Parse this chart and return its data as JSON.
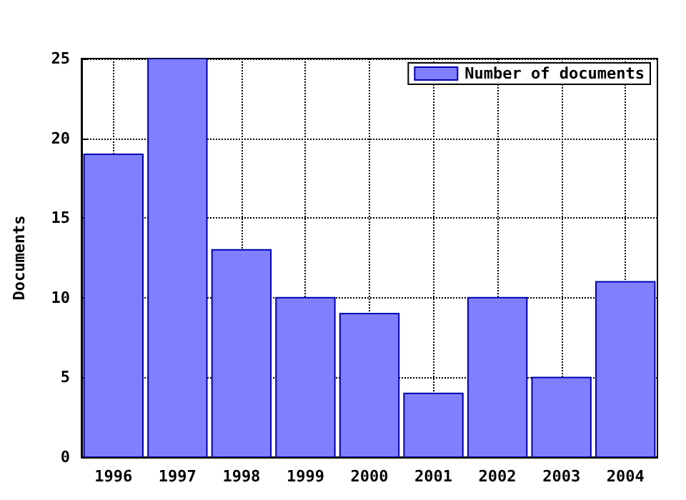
{
  "chart_data": {
    "type": "bar",
    "ylabel": "Documents",
    "x": [
      1996,
      1997,
      1998,
      1999,
      2000,
      2001,
      2002,
      2003,
      2004
    ],
    "series": [
      {
        "name": "Number of documents",
        "color": "#8080ff",
        "values": [
          19,
          25,
          13,
          10,
          9,
          4,
          10,
          5,
          11
        ]
      }
    ],
    "xlim": [
      1995.5,
      2004.5
    ],
    "xticks": [
      1996,
      1997,
      1998,
      1999,
      2000,
      2001,
      2002,
      2003,
      2004
    ],
    "ylim": [
      0,
      25
    ],
    "yticks": [
      0,
      5,
      10,
      15,
      20,
      25
    ],
    "grid": true,
    "legend": "top right",
    "line_style": "dotted"
  }
}
